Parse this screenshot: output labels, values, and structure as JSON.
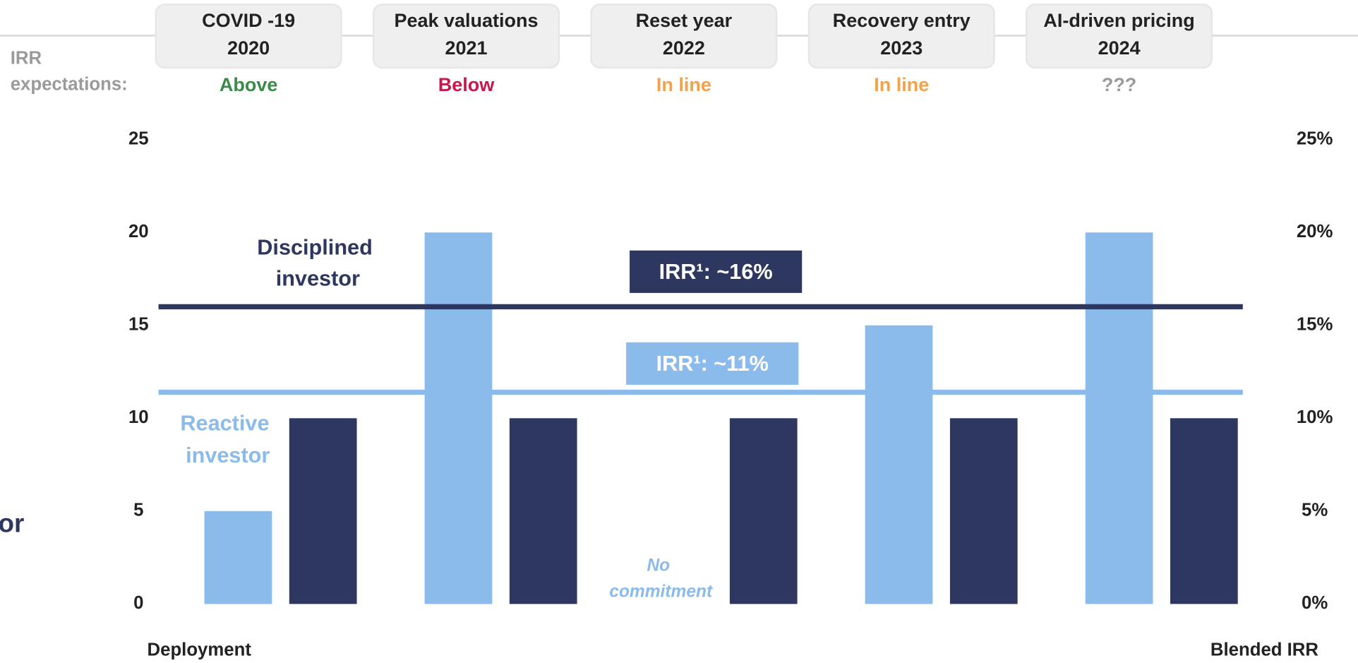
{
  "chart_data": {
    "type": "bar",
    "header_label": "IRR expectations:",
    "events": [
      "COVID -19",
      "Peak  valuations",
      "Reset year",
      "Recovery entry",
      "AI-driven pricing"
    ],
    "categories": [
      "2020",
      "2021",
      "2022",
      "2023",
      "2024"
    ],
    "expectations": [
      "Above",
      "Below",
      "In line",
      "In line",
      "???"
    ],
    "expectation_colors": [
      "#3a8a4a",
      "#c8174e",
      "#f4a24a",
      "#f4a24a",
      "#9a9a9a"
    ],
    "series": [
      {
        "name": "Reactive investor",
        "color": "#8bbbeb",
        "values": [
          5,
          20,
          null,
          15,
          20
        ]
      },
      {
        "name": "Disciplined investor",
        "color": "#2e3760",
        "values": [
          10,
          10,
          10,
          10,
          10
        ]
      }
    ],
    "ylim": [
      0,
      25
    ],
    "yticks": [
      0,
      5,
      10,
      15,
      20,
      25
    ],
    "y2lim": [
      0,
      25
    ],
    "y2ticks": [
      {
        "value": 0,
        "label": "0%"
      },
      {
        "value": 5,
        "label": "5%"
      },
      {
        "value": 10,
        "label": "10%"
      },
      {
        "value": 15,
        "label": "15%"
      },
      {
        "value": 20,
        "label": "20%"
      },
      {
        "value": 25,
        "label": "25%"
      }
    ],
    "ylabel": "Deployment",
    "y2label": "Blended IRR",
    "lines": [
      {
        "label": "IRR¹: ~16%",
        "value": 16,
        "color": "#2e3760",
        "axis": "y2"
      },
      {
        "label": "IRR¹: ~11%",
        "value": 11.4,
        "color": "#8bbbeb",
        "axis": "y2"
      }
    ],
    "annotation": "No commitment",
    "cut_text": "or"
  }
}
